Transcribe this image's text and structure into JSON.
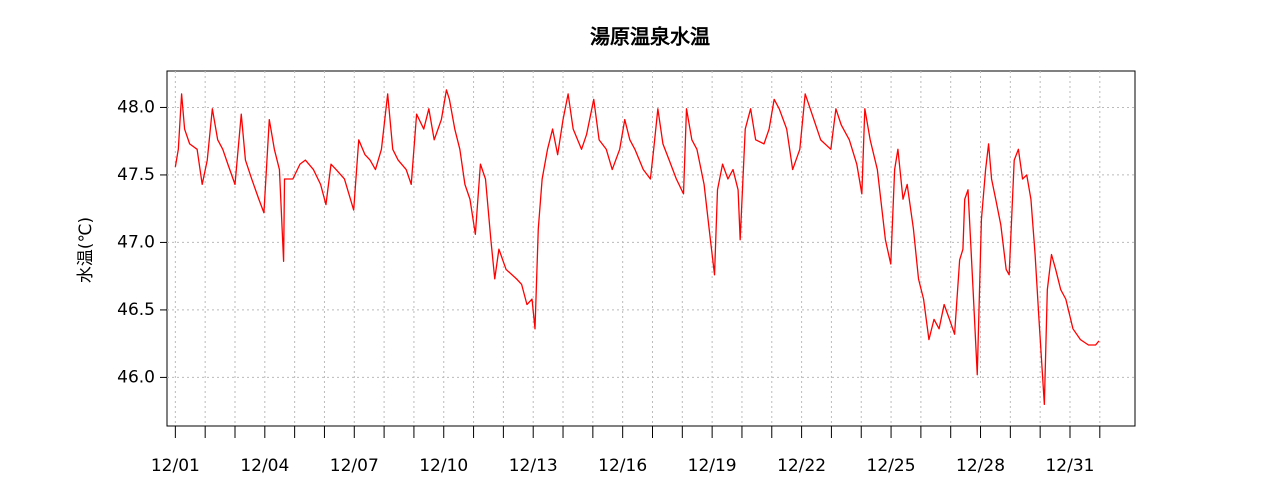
{
  "chart_data": {
    "type": "line",
    "title": "湯原温泉水温",
    "y_label": "水温(℃)",
    "x": [
      1.0,
      1.1,
      1.21,
      1.31,
      1.48,
      1.73,
      1.9,
      2.07,
      2.24,
      2.42,
      2.59,
      2.76,
      3.0,
      3.21,
      3.35,
      3.56,
      3.8,
      3.97,
      4.15,
      4.32,
      4.49,
      4.63,
      4.66,
      4.94,
      5.18,
      5.36,
      5.63,
      5.87,
      6.05,
      6.22,
      6.39,
      6.67,
      6.98,
      7.15,
      7.36,
      7.53,
      7.71,
      7.91,
      8.12,
      8.29,
      8.47,
      8.74,
      8.91,
      9.09,
      9.33,
      9.5,
      9.68,
      9.92,
      10.09,
      10.19,
      10.37,
      10.54,
      10.71,
      10.88,
      11.06,
      11.23,
      11.4,
      11.58,
      11.71,
      11.85,
      12.09,
      12.44,
      12.61,
      12.79,
      12.96,
      13.06,
      13.17,
      13.3,
      13.48,
      13.65,
      13.82,
      14.0,
      14.17,
      14.34,
      14.62,
      14.79,
      15.03,
      15.21,
      15.45,
      15.65,
      15.9,
      16.07,
      16.24,
      16.41,
      16.69,
      16.93,
      17.04,
      17.18,
      17.35,
      17.56,
      17.8,
      18.04,
      18.14,
      18.32,
      18.49,
      18.73,
      18.9,
      19.08,
      19.18,
      19.35,
      19.53,
      19.7,
      19.87,
      19.94,
      20.11,
      20.29,
      20.46,
      20.74,
      20.91,
      21.08,
      21.25,
      21.5,
      21.7,
      21.94,
      22.12,
      22.29,
      22.64,
      22.98,
      23.15,
      23.33,
      23.6,
      23.85,
      24.02,
      24.12,
      24.3,
      24.54,
      24.81,
      24.99,
      25.12,
      25.23,
      25.4,
      25.54,
      25.75,
      25.92,
      26.09,
      26.27,
      26.44,
      26.61,
      26.78,
      26.96,
      27.13,
      27.3,
      27.41,
      27.47,
      27.58,
      27.75,
      27.89,
      28.03,
      28.17,
      28.27,
      28.37,
      28.51,
      28.68,
      28.86,
      28.96,
      29.13,
      29.27,
      29.41,
      29.55,
      29.69,
      29.83,
      29.96,
      30.14,
      30.24,
      30.38,
      30.52,
      30.69,
      30.86,
      31.1,
      31.35,
      31.62,
      31.86,
      31.97
    ],
    "series": [
      {
        "name": "水温",
        "color": "#ff0000",
        "values": [
          47.56,
          47.69,
          48.1,
          47.84,
          47.73,
          47.69,
          47.43,
          47.61,
          47.99,
          47.76,
          47.69,
          47.58,
          47.43,
          47.95,
          47.61,
          47.47,
          47.32,
          47.22,
          47.91,
          47.69,
          47.54,
          46.86,
          47.47,
          47.47,
          47.58,
          47.61,
          47.54,
          47.43,
          47.28,
          47.58,
          47.54,
          47.47,
          47.24,
          47.76,
          47.65,
          47.61,
          47.54,
          47.69,
          48.1,
          47.69,
          47.61,
          47.54,
          47.43,
          47.95,
          47.84,
          47.99,
          47.76,
          47.91,
          48.13,
          48.06,
          47.84,
          47.69,
          47.43,
          47.32,
          47.06,
          47.58,
          47.47,
          47.02,
          46.73,
          46.95,
          46.8,
          46.73,
          46.69,
          46.54,
          46.58,
          46.36,
          47.1,
          47.47,
          47.69,
          47.84,
          47.65,
          47.91,
          48.1,
          47.84,
          47.69,
          47.8,
          48.06,
          47.76,
          47.69,
          47.54,
          47.69,
          47.91,
          47.76,
          47.69,
          47.54,
          47.47,
          47.69,
          47.99,
          47.73,
          47.61,
          47.47,
          47.36,
          47.99,
          47.76,
          47.69,
          47.43,
          47.1,
          46.76,
          47.39,
          47.58,
          47.47,
          47.54,
          47.39,
          47.02,
          47.84,
          47.99,
          47.76,
          47.73,
          47.84,
          48.06,
          47.99,
          47.84,
          47.54,
          47.69,
          48.1,
          47.99,
          47.76,
          47.69,
          47.99,
          47.87,
          47.76,
          47.58,
          47.36,
          47.99,
          47.76,
          47.54,
          47.02,
          46.84,
          47.54,
          47.69,
          47.32,
          47.43,
          47.1,
          46.73,
          46.58,
          46.28,
          46.43,
          46.36,
          46.54,
          46.43,
          46.32,
          46.87,
          46.95,
          47.32,
          47.39,
          46.65,
          46.02,
          47.17,
          47.54,
          47.73,
          47.47,
          47.32,
          47.13,
          46.8,
          46.76,
          47.61,
          47.69,
          47.47,
          47.5,
          47.32,
          46.91,
          46.43,
          45.8,
          46.65,
          46.91,
          46.8,
          46.65,
          46.58,
          46.36,
          46.28,
          46.24,
          46.24,
          46.27
        ]
      }
    ],
    "xlim": [
      0.72,
      33.18
    ],
    "xticks": [
      {
        "value": 1,
        "label": "12/01"
      },
      {
        "value": 2,
        "label": null
      },
      {
        "value": 3,
        "label": null
      },
      {
        "value": 4,
        "label": "12/04"
      },
      {
        "value": 5,
        "label": null
      },
      {
        "value": 6,
        "label": null
      },
      {
        "value": 7,
        "label": "12/07"
      },
      {
        "value": 8,
        "label": null
      },
      {
        "value": 9,
        "label": null
      },
      {
        "value": 10,
        "label": "12/10"
      },
      {
        "value": 11,
        "label": null
      },
      {
        "value": 12,
        "label": null
      },
      {
        "value": 13,
        "label": "12/13"
      },
      {
        "value": 14,
        "label": null
      },
      {
        "value": 15,
        "label": null
      },
      {
        "value": 16,
        "label": "12/16"
      },
      {
        "value": 17,
        "label": null
      },
      {
        "value": 18,
        "label": null
      },
      {
        "value": 19,
        "label": "12/19"
      },
      {
        "value": 20,
        "label": null
      },
      {
        "value": 21,
        "label": null
      },
      {
        "value": 22,
        "label": "12/22"
      },
      {
        "value": 23,
        "label": null
      },
      {
        "value": 24,
        "label": null
      },
      {
        "value": 25,
        "label": "12/25"
      },
      {
        "value": 26,
        "label": null
      },
      {
        "value": 27,
        "label": null
      },
      {
        "value": 28,
        "label": "12/28"
      },
      {
        "value": 29,
        "label": null
      },
      {
        "value": 30,
        "label": null
      },
      {
        "value": 31,
        "label": "12/31"
      },
      {
        "value": 32,
        "label": null
      }
    ],
    "ylim": [
      45.64,
      48.27
    ],
    "yticks": [
      {
        "value": 46,
        "label": "46.0"
      },
      46.5,
      {
        "value": 47,
        "label": "47.0"
      },
      47.5,
      {
        "value": 48,
        "label": "48.0"
      }
    ],
    "grid": true
  }
}
